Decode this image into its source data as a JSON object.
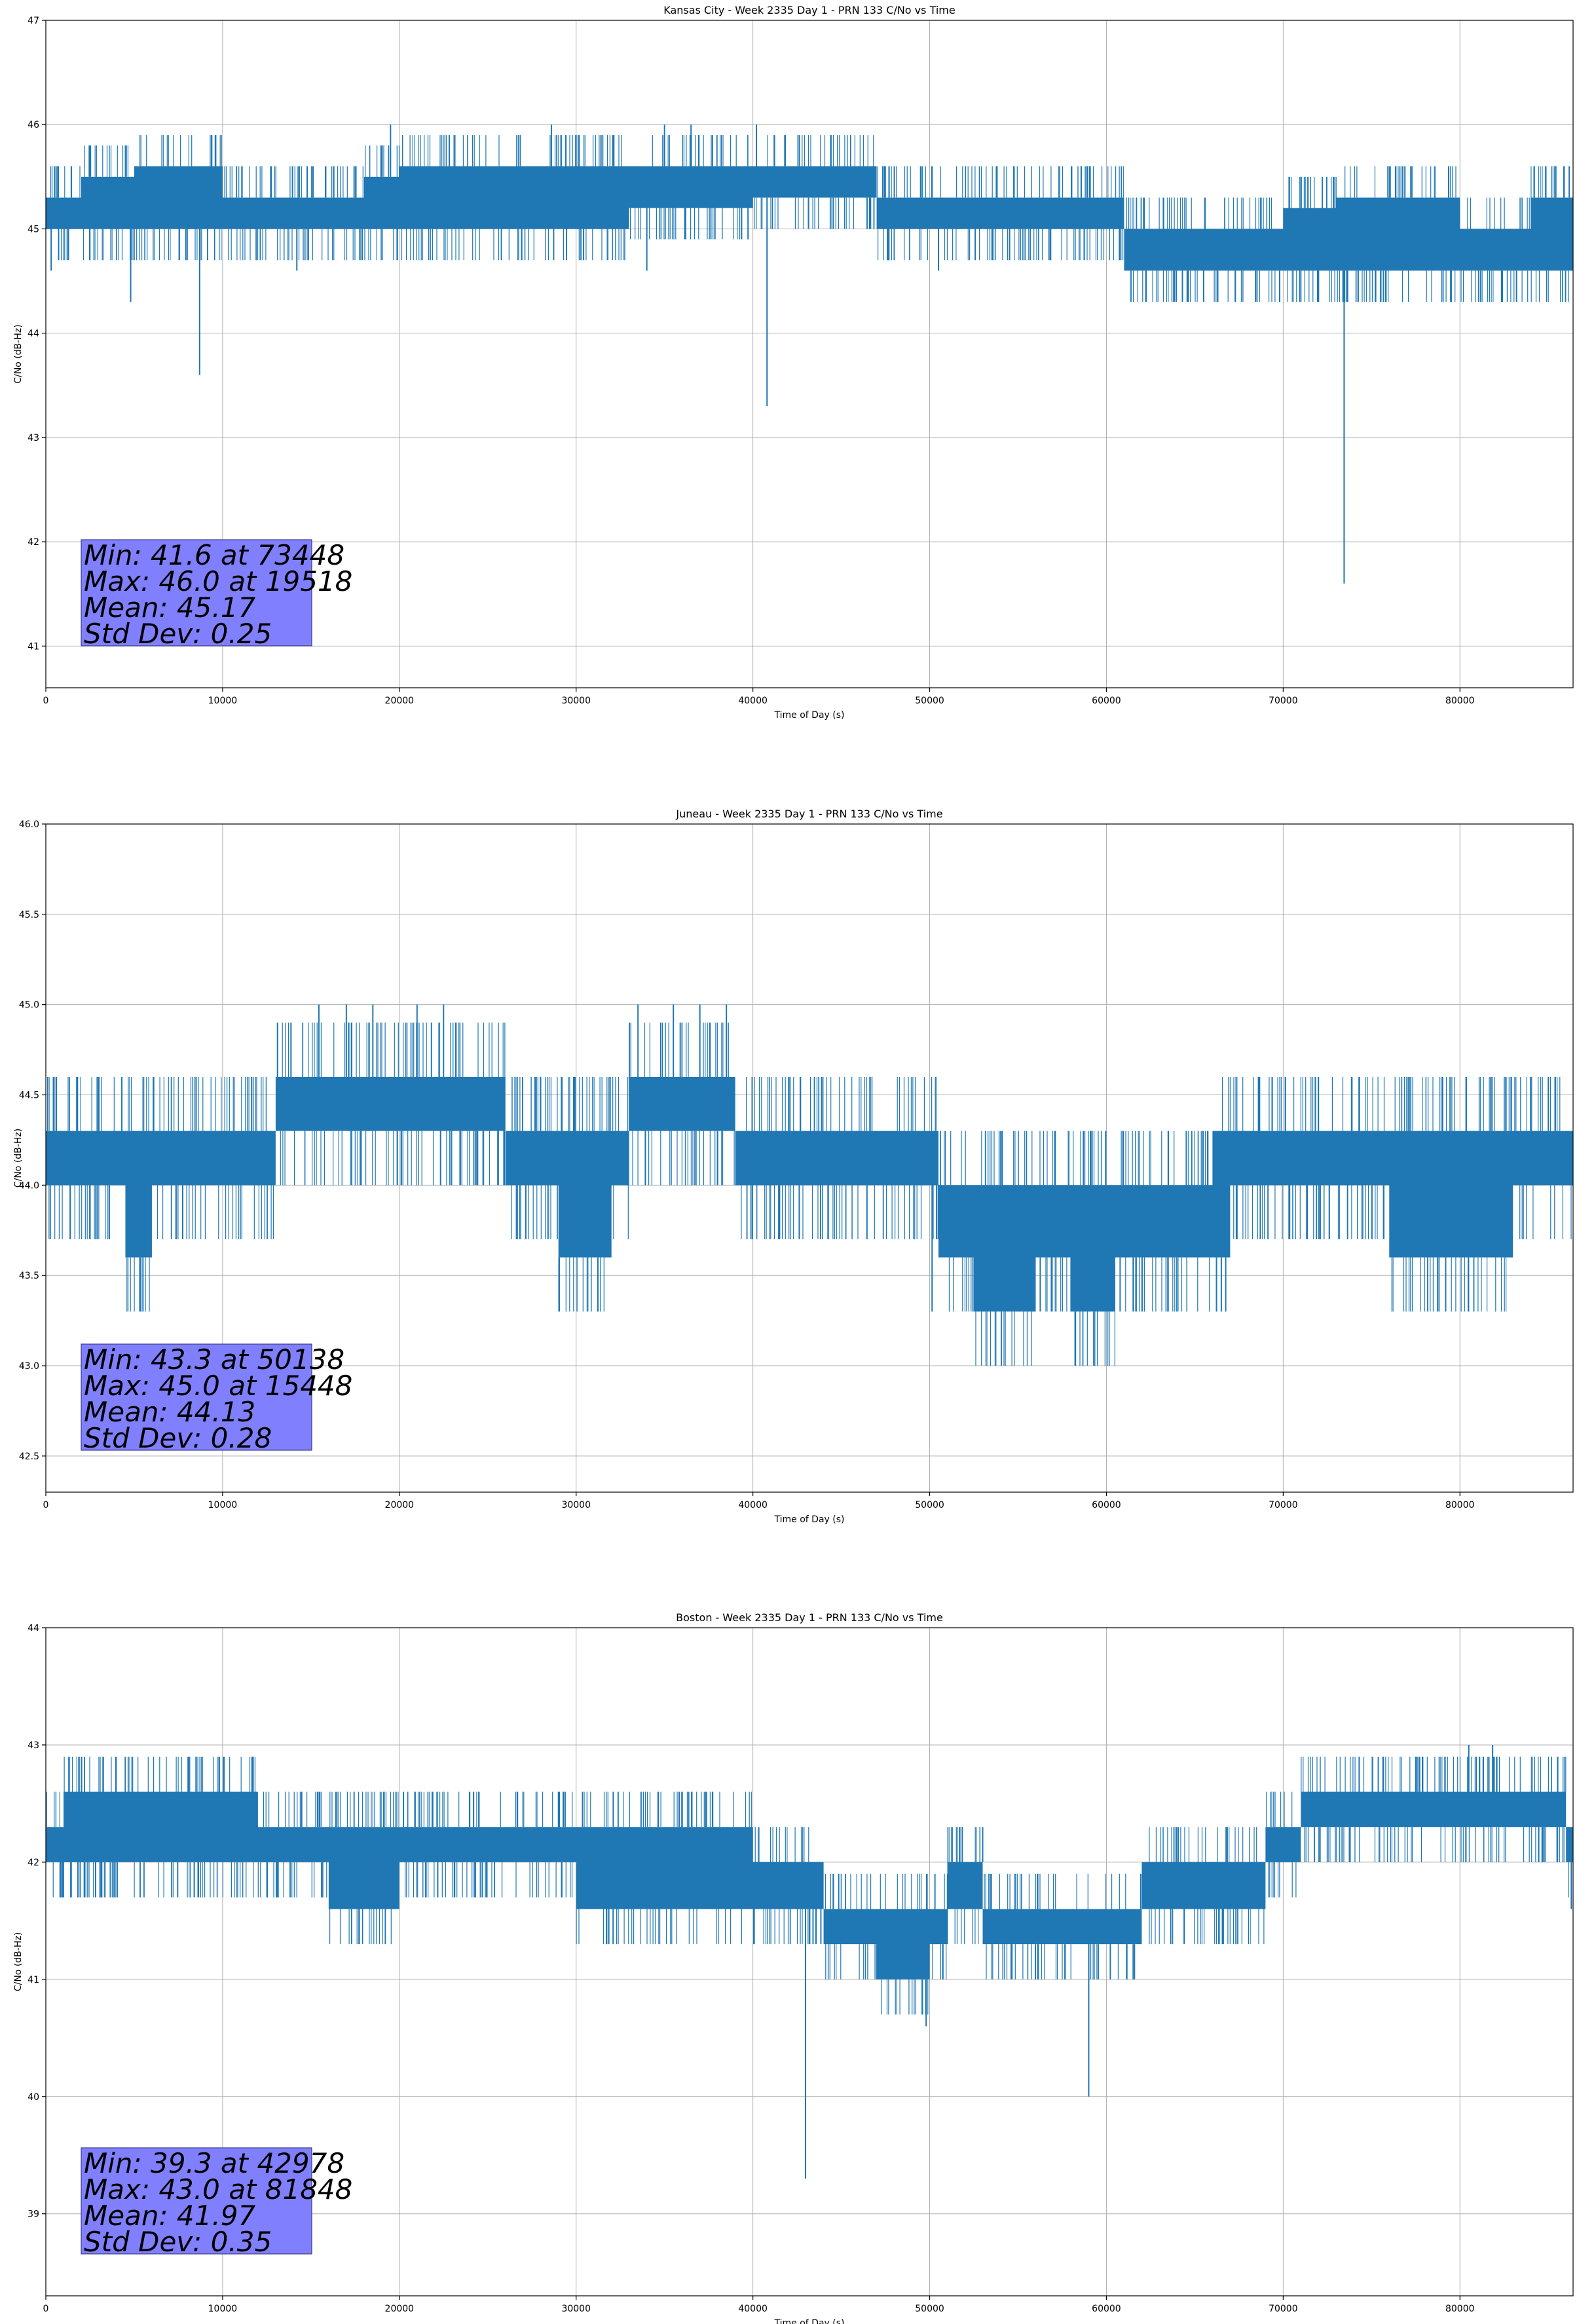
{
  "colors": {
    "line": "#1f77b4",
    "grid": "#b0b0b0",
    "stats_box": "#8080ff"
  },
  "chart_data": [
    {
      "type": "line",
      "title": "Kansas City - Week 2335 Day 1 - PRN 133 C/No vs Time",
      "xlabel": "Time of Day (s)",
      "ylabel": "C/No (dB-Hz)",
      "xlim": [
        0,
        86400
      ],
      "ylim": [
        40.6,
        47
      ],
      "xticks": [
        0,
        10000,
        20000,
        30000,
        40000,
        50000,
        60000,
        70000,
        80000
      ],
      "yticks": [
        41,
        42,
        43,
        44,
        45,
        46,
        47
      ],
      "ytick_labels": [
        "41",
        "42",
        "43",
        "44",
        "45",
        "46",
        "47"
      ],
      "grid": true,
      "series": [
        {
          "band": [
            [
              0,
              45.0,
              45.3
            ],
            [
              2000,
              45.0,
              45.5
            ],
            [
              5000,
              45.0,
              45.6
            ],
            [
              10000,
              45.0,
              45.3
            ],
            [
              15000,
              45.0,
              45.3
            ],
            [
              18000,
              45.0,
              45.5
            ],
            [
              20000,
              45.0,
              45.6
            ],
            [
              30000,
              45.0,
              45.6
            ],
            [
              33000,
              45.2,
              45.6
            ],
            [
              40000,
              45.3,
              45.6
            ],
            [
              47000,
              45.0,
              45.3
            ],
            [
              50000,
              45.0,
              45.3
            ],
            [
              60000,
              45.0,
              45.3
            ],
            [
              61000,
              44.6,
              45.0
            ],
            [
              70000,
              44.6,
              45.2
            ],
            [
              73000,
              44.6,
              45.3
            ],
            [
              80000,
              44.6,
              45.0
            ],
            [
              84000,
              44.6,
              45.3
            ],
            [
              86400,
              44.6,
              45.3
            ]
          ],
          "spikes": [
            [
              300,
              44.6
            ],
            [
              4800,
              44.3
            ],
            [
              8700,
              43.6
            ],
            [
              14200,
              44.6
            ],
            [
              19500,
              46.0
            ],
            [
              28600,
              46.0
            ],
            [
              34000,
              44.6
            ],
            [
              35000,
              46.0
            ],
            [
              36500,
              46.0
            ],
            [
              40200,
              46.0
            ],
            [
              40800,
              43.3
            ],
            [
              50500,
              44.6
            ],
            [
              64300,
              44.3
            ],
            [
              65500,
              44.3
            ],
            [
              72000,
              44.3
            ],
            [
              73448,
              41.6
            ],
            [
              76000,
              45.6
            ],
            [
              82400,
              44.3
            ],
            [
              83200,
              44.3
            ]
          ]
        }
      ],
      "stats": [
        "Min: 41.6 at 73448",
        "Max: 46.0 at 19518",
        "Mean: 45.17",
        "Std Dev: 0.25"
      ]
    },
    {
      "type": "line",
      "title": "Juneau - Week 2335 Day 1 - PRN 133 C/No vs Time",
      "xlabel": "Time of Day (s)",
      "ylabel": "C/No (dB-Hz)",
      "xlim": [
        0,
        86400
      ],
      "ylim": [
        42.3,
        46
      ],
      "xticks": [
        0,
        10000,
        20000,
        30000,
        40000,
        50000,
        60000,
        70000,
        80000
      ],
      "yticks": [
        42.5,
        43.0,
        43.5,
        44.0,
        44.5,
        45.0,
        45.5,
        46.0
      ],
      "ytick_labels": [
        "42.5",
        "43.0",
        "43.5",
        "44.0",
        "44.5",
        "45.0",
        "45.5",
        "46.0"
      ],
      "grid": true,
      "series": [
        {
          "band": [
            [
              0,
              44.0,
              44.3
            ],
            [
              4500,
              43.6,
              44.3
            ],
            [
              6000,
              44.0,
              44.3
            ],
            [
              12000,
              44.0,
              44.3
            ],
            [
              13000,
              44.3,
              44.6
            ],
            [
              18000,
              44.3,
              44.6
            ],
            [
              25000,
              44.3,
              44.6
            ],
            [
              26000,
              44.0,
              44.3
            ],
            [
              28000,
              44.0,
              44.3
            ],
            [
              29000,
              43.6,
              44.3
            ],
            [
              32000,
              44.0,
              44.3
            ],
            [
              33000,
              44.3,
              44.6
            ],
            [
              38500,
              44.3,
              44.6
            ],
            [
              39000,
              44.0,
              44.3
            ],
            [
              50000,
              44.0,
              44.3
            ],
            [
              50500,
              43.6,
              44.0
            ],
            [
              52000,
              43.6,
              44.0
            ],
            [
              52500,
              43.3,
              44.0
            ],
            [
              56000,
              43.6,
              44.0
            ],
            [
              58000,
              43.3,
              44.0
            ],
            [
              60500,
              43.6,
              44.0
            ],
            [
              66000,
              43.6,
              44.3
            ],
            [
              67000,
              44.0,
              44.3
            ],
            [
              75000,
              44.0,
              44.3
            ],
            [
              76000,
              43.6,
              44.3
            ],
            [
              82000,
              43.6,
              44.3
            ],
            [
              83000,
              44.0,
              44.3
            ],
            [
              86400,
              44.0,
              44.3
            ]
          ],
          "spikes": [
            [
              3000,
              44.6
            ],
            [
              4300,
              44.6
            ],
            [
              15448,
              45.0
            ],
            [
              17000,
              45.0
            ],
            [
              18500,
              45.0
            ],
            [
              21000,
              45.0
            ],
            [
              22500,
              45.0
            ],
            [
              33500,
              45.0
            ],
            [
              35500,
              45.0
            ],
            [
              37000,
              45.0
            ],
            [
              38500,
              45.0
            ],
            [
              50138,
              43.3
            ],
            [
              66500,
              43.3
            ],
            [
              77000,
              44.6
            ],
            [
              84000,
              44.6
            ],
            [
              85000,
              44.6
            ]
          ]
        }
      ],
      "stats": [
        "Min: 43.3 at 50138",
        "Max: 45.0 at 15448",
        "Mean: 44.13",
        "Std Dev: 0.28"
      ]
    },
    {
      "type": "line",
      "title": "Boston - Week 2335 Day 1 - PRN 133 C/No vs Time",
      "xlabel": "Time of Day (s)",
      "ylabel": "C/No (dB-Hz)",
      "xlim": [
        0,
        86400
      ],
      "ylim": [
        38.3,
        44
      ],
      "xticks": [
        0,
        10000,
        20000,
        30000,
        40000,
        50000,
        60000,
        70000,
        80000
      ],
      "yticks": [
        39,
        40,
        41,
        42,
        43,
        44
      ],
      "ytick_labels": [
        "39",
        "40",
        "41",
        "42",
        "43",
        "44"
      ],
      "grid": true,
      "series": [
        {
          "band": [
            [
              0,
              42.0,
              42.3
            ],
            [
              1000,
              42.0,
              42.6
            ],
            [
              12000,
              42.0,
              42.3
            ],
            [
              16000,
              41.6,
              42.3
            ],
            [
              20000,
              42.0,
              42.3
            ],
            [
              30000,
              41.6,
              42.3
            ],
            [
              40000,
              41.6,
              42.0
            ],
            [
              44000,
              41.3,
              41.6
            ],
            [
              47000,
              41.0,
              41.6
            ],
            [
              50000,
              41.3,
              41.6
            ],
            [
              51000,
              41.6,
              42.0
            ],
            [
              53000,
              41.3,
              41.6
            ],
            [
              60000,
              41.3,
              41.6
            ],
            [
              62000,
              41.6,
              42.0
            ],
            [
              69000,
              42.0,
              42.3
            ],
            [
              71000,
              42.3,
              42.6
            ],
            [
              80000,
              42.3,
              42.6
            ],
            [
              86000,
              42.0,
              42.3
            ],
            [
              86400,
              42.0,
              42.3
            ]
          ],
          "spikes": [
            [
              24200,
              42.6
            ],
            [
              29000,
              42.6
            ],
            [
              42978,
              39.3
            ],
            [
              49800,
              40.6
            ],
            [
              53000,
              42.3
            ],
            [
              59000,
              40.0
            ],
            [
              80500,
              43.0
            ],
            [
              81848,
              43.0
            ],
            [
              86300,
              41.6
            ]
          ]
        }
      ],
      "stats": [
        "Min: 39.3 at 42978",
        "Max: 43.0 at 81848",
        "Mean: 41.97",
        "Std Dev: 0.35"
      ]
    }
  ]
}
